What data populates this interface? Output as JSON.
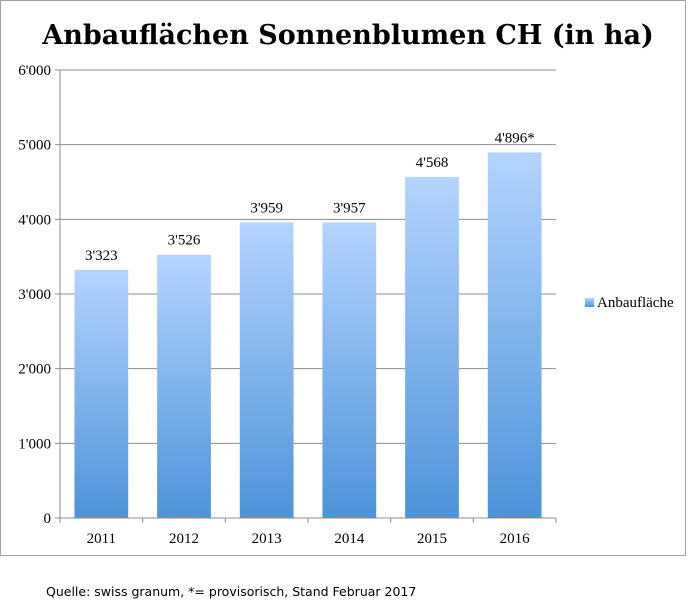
{
  "chart_data": {
    "type": "bar",
    "title": "Anbauflächen Sonnenblumen CH (in ha)",
    "categories": [
      "2011",
      "2012",
      "2013",
      "2014",
      "2015",
      "2016"
    ],
    "series": [
      {
        "name": "Anbaufläche",
        "values": [
          3323,
          3526,
          3959,
          3957,
          4568,
          4896
        ]
      }
    ],
    "data_labels": [
      "3'323",
      "3'526",
      "3'959",
      "3'957",
      "4'568",
      "4'896*"
    ],
    "ylim": [
      0,
      6000
    ],
    "yticks": [
      0,
      1000,
      2000,
      3000,
      4000,
      5000,
      6000
    ],
    "ytick_labels": [
      "0",
      "1'000",
      "2'000",
      "3'000",
      "4'000",
      "5'000",
      "6'000"
    ],
    "grid": true,
    "legend_position": "right",
    "colors": {
      "bar_top": "#b3d4ff",
      "bar_bottom": "#4d93d9",
      "grid": "#8c8c8c"
    }
  },
  "footer": {
    "source": "Quelle: swiss granum, *= provisorisch, Stand Februar 2017"
  }
}
